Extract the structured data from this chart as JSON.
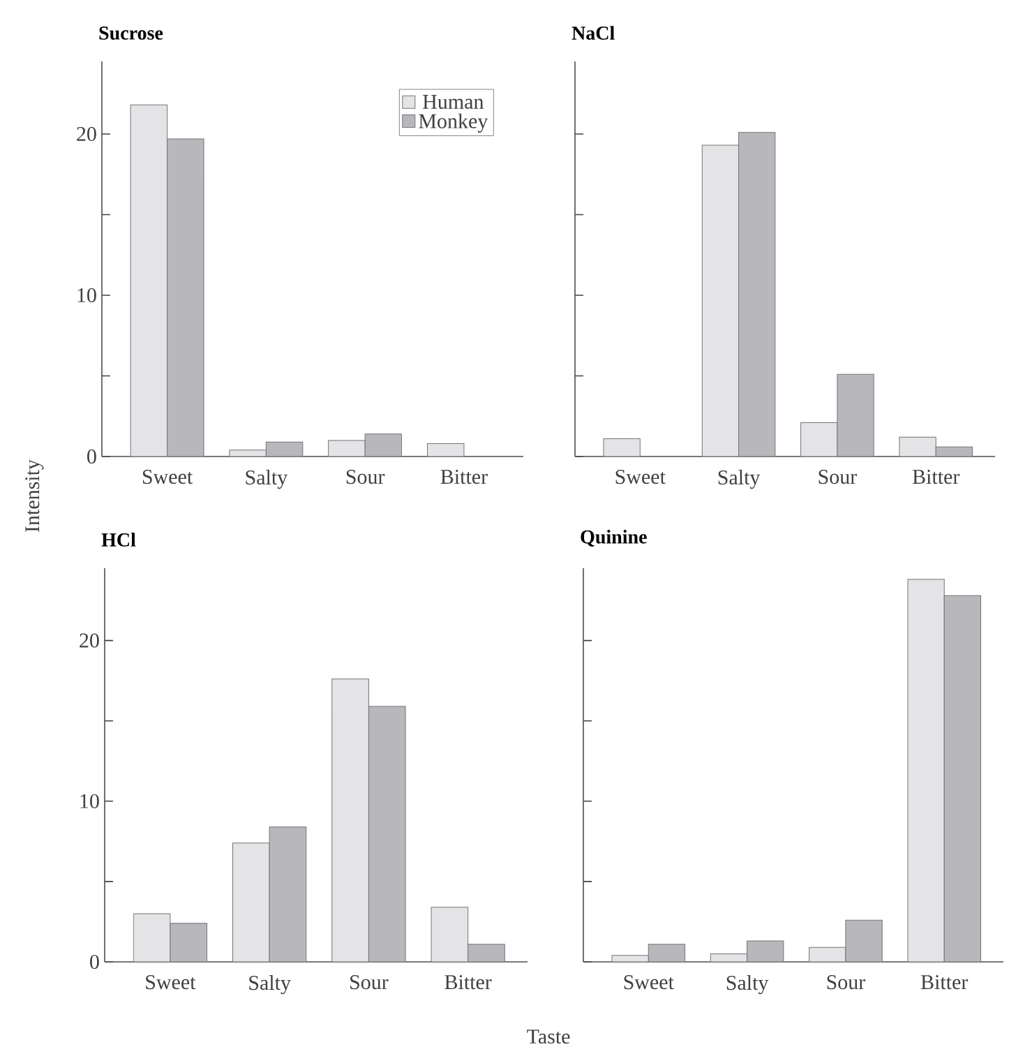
{
  "chart_data": [
    {
      "type": "bar",
      "title": "Sucrose",
      "ylabel": "Intensity",
      "categories": [
        "Sweet",
        "Salty",
        "Sour",
        "Bitter"
      ],
      "series": [
        {
          "name": "Human",
          "color": "#e4e4e6",
          "values": [
            21.8,
            0.4,
            1.0,
            0.8
          ]
        },
        {
          "name": "Monkey",
          "color": "#b8b8bc",
          "values": [
            19.7,
            0.9,
            1.4,
            null
          ]
        }
      ],
      "ylim": [
        0,
        24.5
      ],
      "yticks": [
        0,
        {
          "value": 5,
          "label": null
        },
        10,
        {
          "value": 15,
          "label": null
        },
        20
      ],
      "legend": "top right"
    },
    {
      "type": "bar",
      "title": "NaCl",
      "categories": [
        "Sweet",
        "Salty",
        "Sour",
        "Bitter"
      ],
      "series": [
        {
          "color": "#e4e4e6",
          "values": [
            1.1,
            19.3,
            2.1,
            1.2
          ]
        },
        {
          "color": "#b8b8bc",
          "values": [
            null,
            20.1,
            5.1,
            0.6
          ]
        }
      ],
      "ylim": [
        0,
        24.5
      ],
      "yticks": [
        {
          "value": 0,
          "label": null
        },
        {
          "value": 5,
          "label": null
        },
        {
          "value": 10,
          "label": null
        },
        {
          "value": 15,
          "label": null
        },
        {
          "value": 20,
          "label": null
        }
      ],
      "tick_labels": "x"
    },
    {
      "type": "bar",
      "title": "HCl",
      "categories": [
        "Sweet",
        "Salty",
        "Sour",
        "Bitter"
      ],
      "series": [
        {
          "color": "#e4e4e6",
          "values": [
            3.0,
            7.4,
            17.6,
            3.4
          ]
        },
        {
          "color": "#b8b8bc",
          "values": [
            2.4,
            8.4,
            15.9,
            1.1
          ]
        }
      ],
      "ylim": [
        0,
        24.5
      ],
      "yticks": [
        0,
        {
          "value": 5,
          "label": null
        },
        10,
        {
          "value": 15,
          "label": null
        },
        20
      ]
    },
    {
      "type": "bar",
      "title": "Quinine",
      "xlabel": "Taste",
      "categories": [
        "Sweet",
        "Salty",
        "Sour",
        "Bitter"
      ],
      "series": [
        {
          "color": "#e4e4e6",
          "values": [
            0.4,
            0.5,
            0.9,
            23.8
          ]
        },
        {
          "color": "#b8b8bc",
          "values": [
            1.1,
            1.3,
            2.6,
            22.8
          ]
        }
      ],
      "ylim": [
        0,
        24.5
      ],
      "yticks": [
        {
          "value": 0,
          "label": null
        },
        {
          "value": 5,
          "label": null
        },
        {
          "value": 10,
          "label": null
        },
        {
          "value": 15,
          "label": null
        },
        {
          "value": 20,
          "label": null
        }
      ],
      "tick_labels": "x"
    }
  ]
}
